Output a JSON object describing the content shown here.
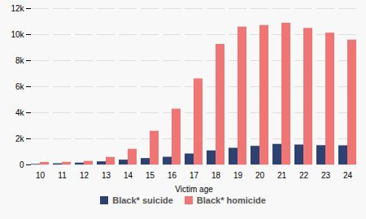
{
  "chart_data": {
    "type": "bar",
    "xlabel": "Victim age",
    "categories": [
      "10",
      "11",
      "12",
      "13",
      "14",
      "15",
      "16",
      "17",
      "18",
      "19",
      "20",
      "21",
      "22",
      "23",
      "24"
    ],
    "series": [
      {
        "name": "Black* suicide",
        "color": "#2e4272",
        "values": [
          45,
          90,
          140,
          240,
          370,
          490,
          590,
          840,
          1080,
          1280,
          1430,
          1580,
          1530,
          1480,
          1470
        ]
      },
      {
        "name": "Black* homicide",
        "color": "#f07575",
        "values": [
          190,
          195,
          270,
          580,
          1200,
          2580,
          4280,
          6600,
          9250,
          10580,
          10700,
          10880,
          10480,
          10120,
          9580
        ]
      }
    ],
    "ylim": [
      0,
      12000
    ],
    "yticks": [
      0,
      {
        "value": 2000,
        "label": "2k"
      },
      {
        "value": 4000,
        "label": "4k"
      },
      {
        "value": 6000,
        "label": "6k"
      },
      {
        "value": 8000,
        "label": "8k"
      },
      {
        "value": 10000,
        "label": "10k"
      },
      {
        "value": 12000,
        "label": "12k"
      }
    ],
    "grid": true,
    "legend": "bottom"
  }
}
